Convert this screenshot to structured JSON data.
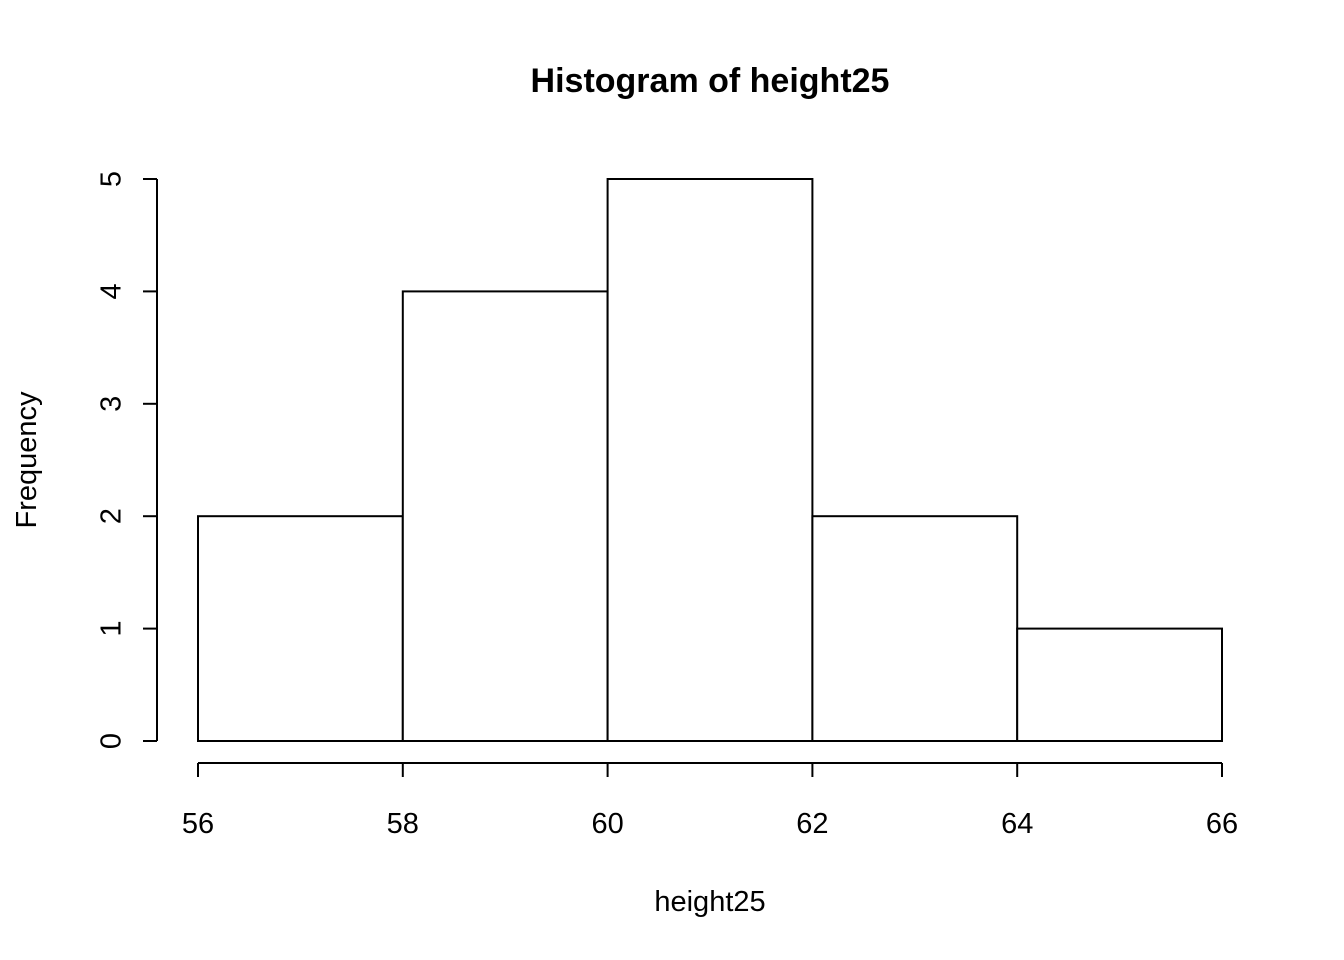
{
  "chart_data": {
    "type": "bar",
    "title": "Histogram of height25",
    "xlabel": "height25",
    "ylabel": "Frequency",
    "bins": [
      {
        "from": 56,
        "to": 58,
        "count": 2
      },
      {
        "from": 58,
        "to": 60,
        "count": 4
      },
      {
        "from": 60,
        "to": 62,
        "count": 5
      },
      {
        "from": 62,
        "to": 64,
        "count": 2
      },
      {
        "from": 64,
        "to": 66,
        "count": 1
      }
    ],
    "xlim": [
      56,
      66
    ],
    "ylim": [
      0,
      5
    ],
    "x_ticks": [
      56,
      58,
      60,
      62,
      64,
      66
    ],
    "y_ticks": [
      0,
      1,
      2,
      3,
      4,
      5
    ],
    "grid": false,
    "bar_fill": "#ffffff",
    "bar_stroke": "#000000"
  }
}
